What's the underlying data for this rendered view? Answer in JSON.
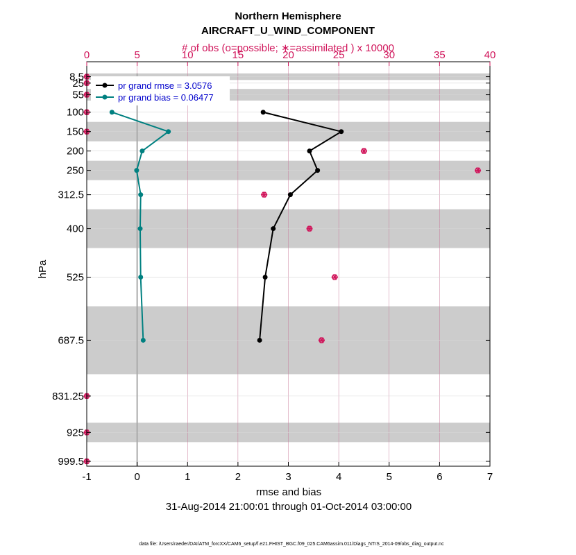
{
  "chart_data": {
    "type": "line",
    "title_line1": "Northern Hemisphere",
    "title_line2": "AIRCRAFT_U_WIND_COMPONENT",
    "top_axis_label": "# of obs (o=possible; ∗=assimilated ) x 10000",
    "top_axis": {
      "min": 0,
      "max": 40,
      "ticks": [
        "0",
        "5",
        "10",
        "15",
        "20",
        "25",
        "30",
        "35",
        "40"
      ]
    },
    "xlabel": "rmse and bias",
    "xlim": [
      -1,
      7
    ],
    "x_ticks": [
      "-1",
      "0",
      "1",
      "2",
      "3",
      "4",
      "5",
      "6",
      "7"
    ],
    "ylabel": "hPa",
    "y_tick_labels": [
      "8.5",
      "25",
      "55",
      "100",
      "150",
      "200",
      "250",
      "312.5",
      "400",
      "525",
      "687.5",
      "831.25",
      "925",
      "999.5"
    ],
    "y_levels": [
      8.5,
      25,
      55,
      100,
      150,
      200,
      250,
      312.5,
      400,
      525,
      687.5,
      831.25,
      925,
      999.5
    ],
    "date_range": "31-Aug-2014 21:00:01 through 01-Oct-2014 03:00:00",
    "footnote": "data file: /Users/raeder/DAI/ATM_forcXX/CAM6_setup/f.e21.FHIST_BGC.f09_025.CAM6assim.011/Diags_NTrS_2014-09/obs_diag_output.nc",
    "series": [
      {
        "name": "pr grand rmse = 3.0576",
        "color": "#000000",
        "points": [
          [
            100,
            2.5
          ],
          [
            150,
            4.05
          ],
          [
            200,
            3.42
          ],
          [
            250,
            3.58
          ],
          [
            312.5,
            3.04
          ],
          [
            400,
            2.7
          ],
          [
            525,
            2.54
          ],
          [
            687.5,
            2.43
          ]
        ]
      },
      {
        "name": "pr grand bias = 0.06477",
        "color": "#008080",
        "points": [
          [
            100,
            -0.5
          ],
          [
            150,
            0.62
          ],
          [
            200,
            0.1
          ],
          [
            250,
            -0.01
          ],
          [
            312.5,
            0.07
          ],
          [
            400,
            0.06
          ],
          [
            525,
            0.07
          ],
          [
            687.5,
            0.12
          ]
        ]
      }
    ],
    "obs_possible": [
      [
        8.5,
        0
      ],
      [
        25,
        0
      ],
      [
        55,
        0
      ],
      [
        100,
        0
      ],
      [
        150,
        0
      ],
      [
        200,
        27.5
      ],
      [
        250,
        38.8
      ],
      [
        312.5,
        17.6
      ],
      [
        400,
        22.1
      ],
      [
        525,
        24.6
      ],
      [
        687.5,
        23.3
      ],
      [
        831.25,
        0
      ],
      [
        925,
        0
      ],
      [
        999.5,
        0
      ]
    ],
    "obs_assimilated": [
      [
        8.5,
        0
      ],
      [
        25,
        0
      ],
      [
        55,
        0
      ],
      [
        100,
        0
      ],
      [
        150,
        0
      ],
      [
        200,
        27.5
      ],
      [
        250,
        38.8
      ],
      [
        312.5,
        17.6
      ],
      [
        400,
        22.1
      ],
      [
        525,
        24.6
      ],
      [
        687.5,
        23.3
      ],
      [
        831.25,
        0
      ],
      [
        925,
        0
      ],
      [
        999.5,
        0
      ]
    ],
    "layer_bands": [
      [
        0,
        17
      ],
      [
        40,
        70
      ],
      [
        125,
        175
      ],
      [
        225,
        275
      ],
      [
        350,
        450
      ],
      [
        600,
        775
      ],
      [
        900,
        950
      ]
    ],
    "colors": {
      "band": "#cccccc",
      "obs": "#d0145a",
      "grid_top": "#c97a9a",
      "zero_line": "#aaaaaa"
    }
  }
}
